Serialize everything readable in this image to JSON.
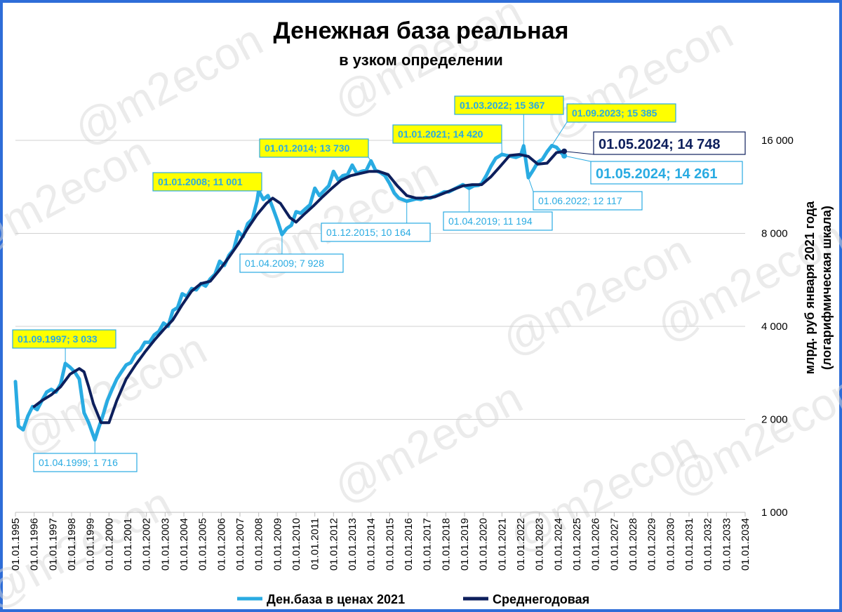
{
  "watermark": "@m2econ",
  "chart_data": {
    "type": "line",
    "title": "Денежная база реальная",
    "subtitle": "в узком определении",
    "ylabel": [
      "млрд. руб января 2021 года",
      "(логарифмическая шкала)"
    ],
    "yscale": "log",
    "ylim": [
      1000,
      16000
    ],
    "yticks": [
      1000,
      2000,
      4000,
      8000,
      16000
    ],
    "ytick_labels": [
      "1 000",
      "2 000",
      "4 000",
      "8 000",
      "16 000"
    ],
    "xlim": [
      "1995-01-01",
      "2034-01-01"
    ],
    "xtick_labels": [
      "01.01.1995",
      "01.01.1996",
      "01.01.1997",
      "01.01.1998",
      "01.01.1999",
      "01.01.2000",
      "01.01.2001",
      "01.01.2002",
      "01.01.2003",
      "01.01.2004",
      "01.01.2005",
      "01.01.2006",
      "01.01.2007",
      "01.01.2008",
      "01.01.2009",
      "01.01.2010",
      "01.01.2011",
      "01.01.2012",
      "01.01.2013",
      "01.01.2014",
      "01.01.2015",
      "01.01.2016",
      "01.01.2017",
      "01.01.2018",
      "01.01.2019",
      "01.01.2020",
      "01.01.2021",
      "01.01.2022",
      "01.01.2023",
      "01.01.2024",
      "01.01.2025",
      "01.01.2026",
      "01.01.2027",
      "01.01.2028",
      "01.01.2029",
      "01.01.2030",
      "01.01.2031",
      "01.01.2032",
      "01.01.2033",
      "01.01.2034"
    ],
    "grid": "horizontal",
    "legend": "bottom",
    "series": [
      {
        "name": "Ден.база в ценах 2021",
        "color": "#29ABE2",
        "points": [
          [
            "1995-01-01",
            2650
          ],
          [
            "1995-03-01",
            1900
          ],
          [
            "1995-06-01",
            1850
          ],
          [
            "1995-09-01",
            2050
          ],
          [
            "1995-12-01",
            2200
          ],
          [
            "1996-03-01",
            2150
          ],
          [
            "1996-06-01",
            2300
          ],
          [
            "1996-09-01",
            2450
          ],
          [
            "1996-12-01",
            2500
          ],
          [
            "1997-03-01",
            2450
          ],
          [
            "1997-06-01",
            2600
          ],
          [
            "1997-09-01",
            3033
          ],
          [
            "1997-12-01",
            2950
          ],
          [
            "1998-03-01",
            2850
          ],
          [
            "1998-06-01",
            2700
          ],
          [
            "1998-09-01",
            2100
          ],
          [
            "1998-12-01",
            1950
          ],
          [
            "1999-04-01",
            1716
          ],
          [
            "1999-06-01",
            1850
          ],
          [
            "1999-09-01",
            2050
          ],
          [
            "1999-12-01",
            2300
          ],
          [
            "2000-03-01",
            2500
          ],
          [
            "2000-06-01",
            2700
          ],
          [
            "2000-09-01",
            2850
          ],
          [
            "2000-12-01",
            3000
          ],
          [
            "2001-03-01",
            3050
          ],
          [
            "2001-06-01",
            3250
          ],
          [
            "2001-09-01",
            3350
          ],
          [
            "2001-12-01",
            3550
          ],
          [
            "2002-03-01",
            3550
          ],
          [
            "2002-06-01",
            3750
          ],
          [
            "2002-09-01",
            3850
          ],
          [
            "2002-12-01",
            4100
          ],
          [
            "2003-03-01",
            4000
          ],
          [
            "2003-06-01",
            4500
          ],
          [
            "2003-09-01",
            4600
          ],
          [
            "2003-12-01",
            5100
          ],
          [
            "2004-03-01",
            5000
          ],
          [
            "2004-06-01",
            5300
          ],
          [
            "2004-09-01",
            5250
          ],
          [
            "2004-12-01",
            5500
          ],
          [
            "2005-03-01",
            5400
          ],
          [
            "2005-06-01",
            5700
          ],
          [
            "2005-09-01",
            5900
          ],
          [
            "2005-12-01",
            6500
          ],
          [
            "2006-03-01",
            6300
          ],
          [
            "2006-06-01",
            6800
          ],
          [
            "2006-09-01",
            7100
          ],
          [
            "2006-12-01",
            8100
          ],
          [
            "2007-03-01",
            7800
          ],
          [
            "2007-06-01",
            8600
          ],
          [
            "2007-09-01",
            8900
          ],
          [
            "2007-12-01",
            10200
          ],
          [
            "2008-01-01",
            11001
          ],
          [
            "2008-04-01",
            10300
          ],
          [
            "2008-07-01",
            10600
          ],
          [
            "2008-10-01",
            9700
          ],
          [
            "2009-01-01",
            8800
          ],
          [
            "2009-04-01",
            7928
          ],
          [
            "2009-07-01",
            8300
          ],
          [
            "2009-10-01",
            8500
          ],
          [
            "2010-01-01",
            9400
          ],
          [
            "2010-04-01",
            9300
          ],
          [
            "2010-07-01",
            9600
          ],
          [
            "2010-10-01",
            9900
          ],
          [
            "2011-01-01",
            11200
          ],
          [
            "2011-04-01",
            10600
          ],
          [
            "2011-07-01",
            11000
          ],
          [
            "2011-10-01",
            11400
          ],
          [
            "2012-01-01",
            12700
          ],
          [
            "2012-04-01",
            11900
          ],
          [
            "2012-07-01",
            12300
          ],
          [
            "2012-10-01",
            12400
          ],
          [
            "2013-01-01",
            13300
          ],
          [
            "2013-04-01",
            12500
          ],
          [
            "2013-07-01",
            12700
          ],
          [
            "2013-10-01",
            12800
          ],
          [
            "2014-01-01",
            13730
          ],
          [
            "2014-04-01",
            12800
          ],
          [
            "2014-07-01",
            12600
          ],
          [
            "2014-10-01",
            12300
          ],
          [
            "2015-01-01",
            11600
          ],
          [
            "2015-04-01",
            10800
          ],
          [
            "2015-07-01",
            10400
          ],
          [
            "2015-12-01",
            10164
          ],
          [
            "2016-03-01",
            10250
          ],
          [
            "2016-06-01",
            10350
          ],
          [
            "2016-09-01",
            10300
          ],
          [
            "2016-12-01",
            10450
          ],
          [
            "2017-03-01",
            10400
          ],
          [
            "2017-06-01",
            10550
          ],
          [
            "2017-09-01",
            10700
          ],
          [
            "2017-12-01",
            10900
          ],
          [
            "2018-03-01",
            10900
          ],
          [
            "2018-06-01",
            11100
          ],
          [
            "2018-09-01",
            11300
          ],
          [
            "2018-12-01",
            11500
          ],
          [
            "2019-04-01",
            11194
          ],
          [
            "2019-07-01",
            11400
          ],
          [
            "2019-10-01",
            11450
          ],
          [
            "2019-12-01",
            11600
          ],
          [
            "2020-03-01",
            12300
          ],
          [
            "2020-06-01",
            13200
          ],
          [
            "2020-09-01",
            14000
          ],
          [
            "2020-12-01",
            14300
          ],
          [
            "2021-01-01",
            14420
          ],
          [
            "2021-04-01",
            14300
          ],
          [
            "2021-07-01",
            14200
          ],
          [
            "2021-10-01",
            14100
          ],
          [
            "2022-01-01",
            14300
          ],
          [
            "2022-03-01",
            15367
          ],
          [
            "2022-06-01",
            12117
          ],
          [
            "2022-09-01",
            12800
          ],
          [
            "2022-12-01",
            13600
          ],
          [
            "2023-03-01",
            13900
          ],
          [
            "2023-06-01",
            14700
          ],
          [
            "2023-09-01",
            15385
          ],
          [
            "2023-12-01",
            15200
          ],
          [
            "2024-03-01",
            14600
          ],
          [
            "2024-05-01",
            14261
          ]
        ]
      },
      {
        "name": "Среднегодовая",
        "color": "#0D1F5C",
        "points": [
          [
            "1996-01-01",
            2200
          ],
          [
            "1996-06-01",
            2300
          ],
          [
            "1996-12-01",
            2400
          ],
          [
            "1997-06-01",
            2550
          ],
          [
            "1997-12-01",
            2800
          ],
          [
            "1998-06-01",
            2920
          ],
          [
            "1998-09-01",
            2850
          ],
          [
            "1998-12-01",
            2550
          ],
          [
            "1999-03-01",
            2250
          ],
          [
            "1999-08-01",
            1950
          ],
          [
            "2000-01-01",
            1950
          ],
          [
            "2000-06-01",
            2300
          ],
          [
            "2000-12-01",
            2700
          ],
          [
            "2001-06-01",
            3000
          ],
          [
            "2001-12-01",
            3300
          ],
          [
            "2002-06-01",
            3600
          ],
          [
            "2002-12-01",
            3900
          ],
          [
            "2003-06-01",
            4200
          ],
          [
            "2003-12-01",
            4700
          ],
          [
            "2004-06-01",
            5200
          ],
          [
            "2004-12-01",
            5500
          ],
          [
            "2005-06-01",
            5600
          ],
          [
            "2005-12-01",
            6100
          ],
          [
            "2006-06-01",
            6700
          ],
          [
            "2006-12-01",
            7400
          ],
          [
            "2007-06-01",
            8300
          ],
          [
            "2007-12-01",
            9200
          ],
          [
            "2008-06-01",
            10000
          ],
          [
            "2008-10-01",
            10400
          ],
          [
            "2009-03-01",
            10000
          ],
          [
            "2009-09-01",
            9000
          ],
          [
            "2010-01-01",
            8700
          ],
          [
            "2010-06-01",
            9200
          ],
          [
            "2010-12-01",
            9800
          ],
          [
            "2011-06-01",
            10500
          ],
          [
            "2011-12-01",
            11200
          ],
          [
            "2012-06-01",
            11900
          ],
          [
            "2012-12-01",
            12300
          ],
          [
            "2013-06-01",
            12500
          ],
          [
            "2013-12-01",
            12700
          ],
          [
            "2014-06-01",
            12700
          ],
          [
            "2014-12-01",
            12400
          ],
          [
            "2015-06-01",
            11400
          ],
          [
            "2015-12-01",
            10600
          ],
          [
            "2016-06-01",
            10400
          ],
          [
            "2016-12-01",
            10400
          ],
          [
            "2017-06-01",
            10500
          ],
          [
            "2017-12-01",
            10800
          ],
          [
            "2018-06-01",
            11100
          ],
          [
            "2018-12-01",
            11400
          ],
          [
            "2019-06-01",
            11500
          ],
          [
            "2019-12-01",
            11500
          ],
          [
            "2020-06-01",
            12200
          ],
          [
            "2020-12-01",
            13200
          ],
          [
            "2021-06-01",
            14300
          ],
          [
            "2021-12-01",
            14400
          ],
          [
            "2022-06-01",
            14200
          ],
          [
            "2022-12-01",
            13400
          ],
          [
            "2023-06-01",
            13500
          ],
          [
            "2023-12-01",
            14600
          ],
          [
            "2024-05-01",
            14748
          ]
        ]
      }
    ],
    "annotations": [
      {
        "text": "01.09.1997; 3 033",
        "style": "yellow",
        "at": [
          "1997-09-01",
          3033
        ]
      },
      {
        "text": "01.04.1999; 1 716",
        "style": "blue",
        "at": [
          "1999-04-01",
          1716
        ]
      },
      {
        "text": "01.01.2008; 11 001",
        "style": "yellow",
        "at": [
          "2008-01-01",
          11001
        ]
      },
      {
        "text": "01.04.2009; 7 928",
        "style": "blue",
        "at": [
          "2009-04-01",
          7928
        ]
      },
      {
        "text": "01.01.2014; 13 730",
        "style": "yellow",
        "at": [
          "2014-01-01",
          13730
        ]
      },
      {
        "text": "01.12.2015; 10 164",
        "style": "blue",
        "at": [
          "2015-12-01",
          10164
        ]
      },
      {
        "text": "01.01.2021; 14 420",
        "style": "yellow",
        "at": [
          "2021-01-01",
          14420
        ]
      },
      {
        "text": "01.04.2019; 11 194",
        "style": "blue",
        "at": [
          "2019-04-01",
          11194
        ]
      },
      {
        "text": "01.03.2022; 15 367",
        "style": "yellow",
        "at": [
          "2022-03-01",
          15367
        ]
      },
      {
        "text": "01.06.2022; 12 117",
        "style": "blue",
        "at": [
          "2022-06-01",
          12117
        ]
      },
      {
        "text": "01.09.2023; 15 385",
        "style": "yellow",
        "at": [
          "2023-09-01",
          15385
        ]
      },
      {
        "text": "01.05.2024; 14 748",
        "style": "dark-big",
        "at": [
          "2024-05-01",
          14748
        ]
      },
      {
        "text": "01.05.2024; 14 261",
        "style": "blue-big",
        "at": [
          "2024-05-01",
          14261
        ]
      }
    ]
  }
}
